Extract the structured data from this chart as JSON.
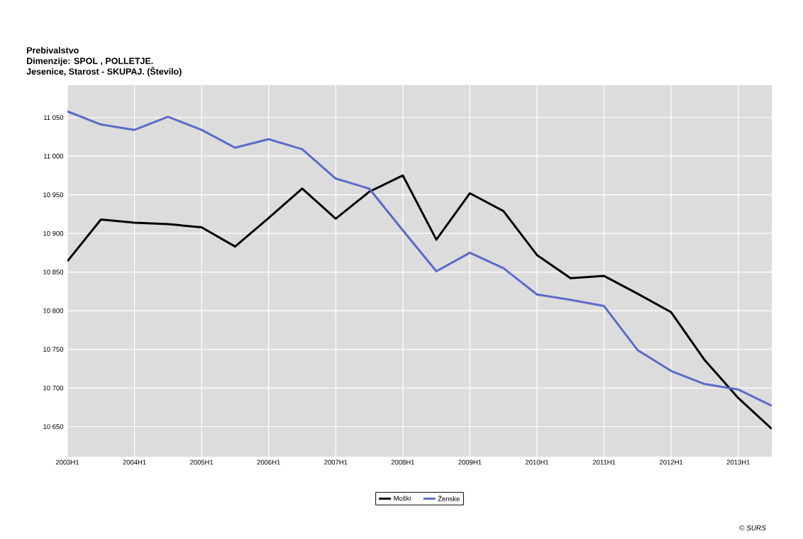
{
  "chart_data": {
    "type": "line",
    "title": "Prebivalstvo",
    "subtitle": "Dimenzije: SPOL , POLLETJE.",
    "annotations": [
      "Jesenice, Starost - SKUPAJ. (Število)",
      "© SURS"
    ],
    "categories": [
      "2003H1",
      null,
      "2004H1",
      null,
      "2005H1",
      null,
      "2006H1",
      null,
      "2007H1",
      null,
      "2008H1",
      null,
      "2009H1",
      null,
      "2010H1",
      null,
      "2011H1",
      null,
      "2012H1",
      null,
      "2013H1",
      null
    ],
    "series": [
      {
        "name": "Moški",
        "color": "#000000",
        "values": [
          10864,
          10918,
          10914,
          10912,
          10908,
          10883,
          10920,
          10958,
          10919,
          10954,
          10975,
          10892,
          10952,
          10929,
          10872,
          10842,
          10845,
          10822,
          10798,
          10736,
          10687,
          10647
        ]
      },
      {
        "name": "Ženske",
        "color": "#5b6bc8",
        "values": [
          11058,
          11041,
          11034,
          11051,
          11034,
          11011,
          11022,
          11009,
          10971,
          10958,
          10904,
          10851,
          10875,
          10855,
          10821,
          10814,
          10806,
          10749,
          10722,
          10705,
          10698,
          10677
        ]
      }
    ],
    "ylim": [
      10611,
      11092
    ],
    "yticks": [
      {
        "value": 10650,
        "label": "10 650"
      },
      {
        "value": 10700,
        "label": "10 700"
      },
      {
        "value": 10750,
        "label": "10 750"
      },
      {
        "value": 10800,
        "label": "10 800"
      },
      {
        "value": 10850,
        "label": "10 850"
      },
      {
        "value": 10900,
        "label": "10 900"
      },
      {
        "value": 10950,
        "label": "10 950"
      },
      {
        "value": 11000,
        "label": "11 000"
      },
      {
        "value": 11050,
        "label": "11 050"
      }
    ],
    "grid": true,
    "legend": "bottom",
    "marker": "none",
    "line_style": "solid"
  }
}
